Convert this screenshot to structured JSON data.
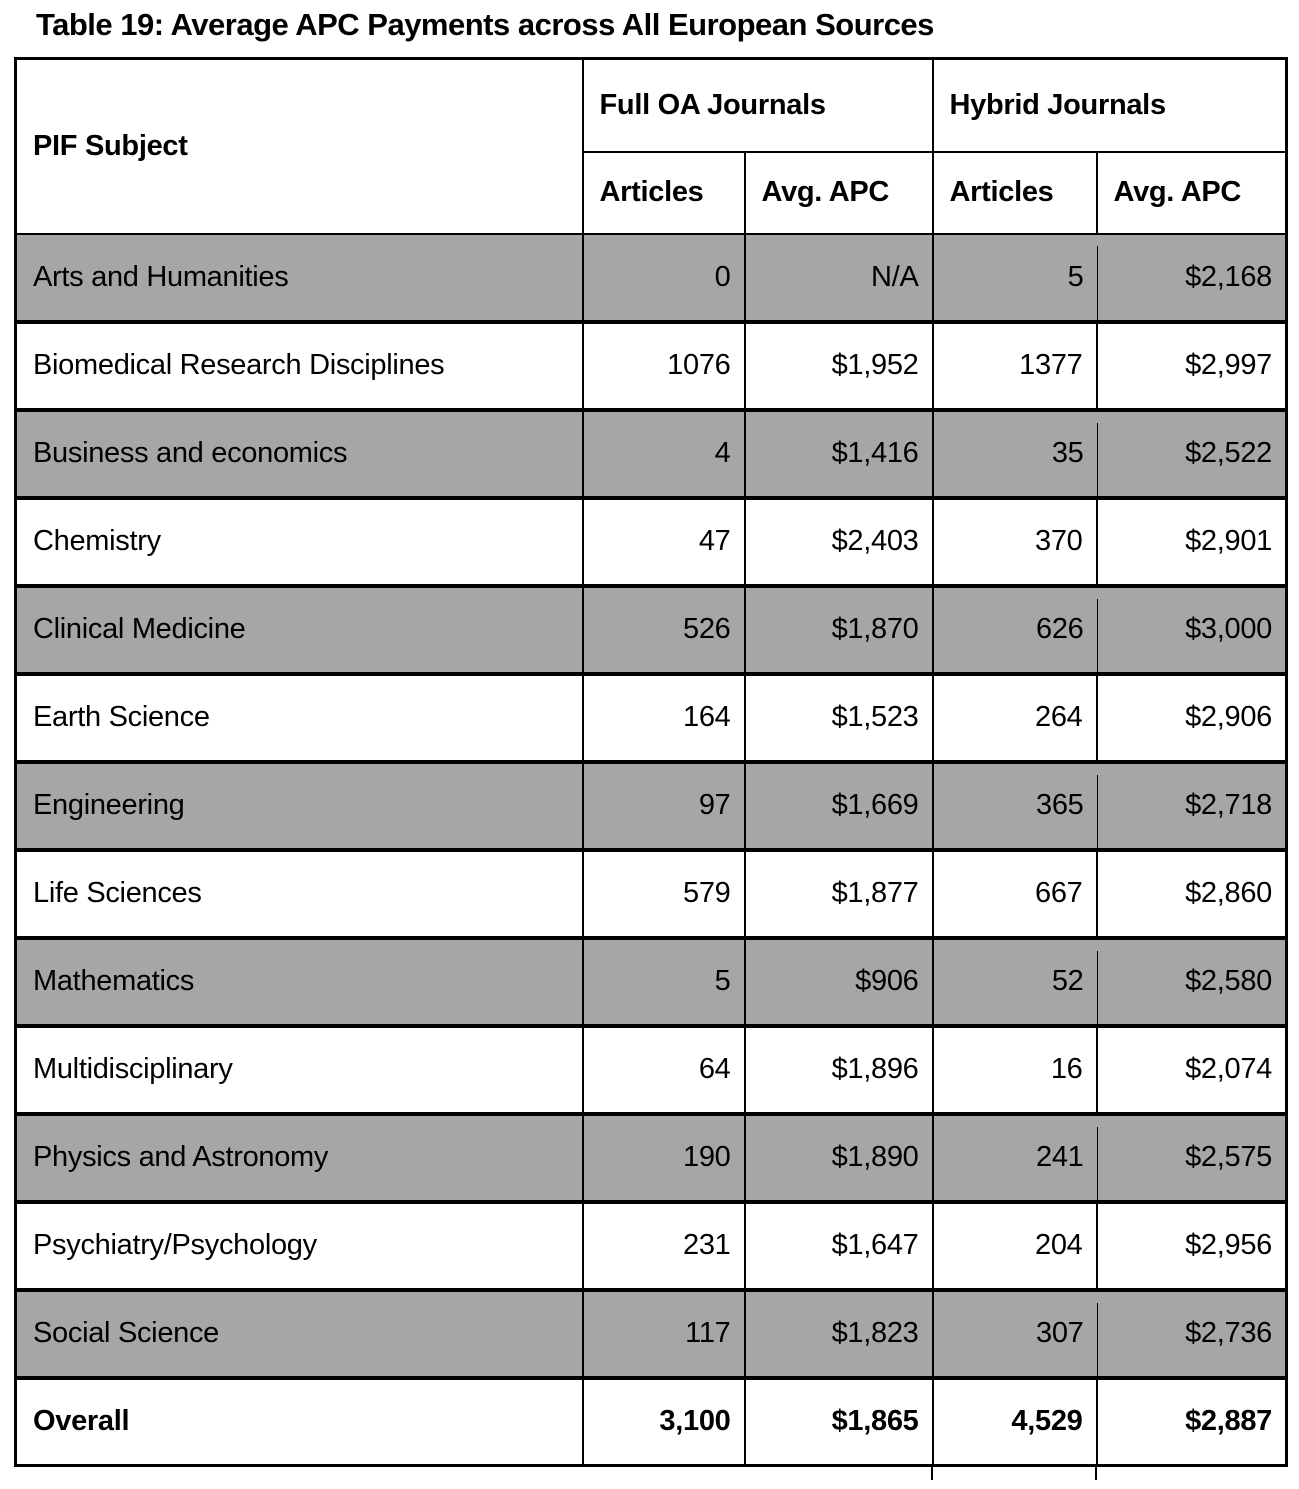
{
  "title": "Table 19: Average APC Payments across All European Sources",
  "colors": {
    "shaded_row": "#a6a6a6",
    "row_bg": "#ffffff",
    "border": "#000000",
    "text": "#000000",
    "page_bg": "#ffffff"
  },
  "table": {
    "subject_header": "PIF Subject",
    "group_headers": [
      "Full OA Journals",
      "Hybrid Journals"
    ],
    "sub_headers": [
      "Articles",
      "Avg. APC",
      "Articles",
      "Avg. APC"
    ],
    "rows": [
      {
        "subject": "Arts and Humanities",
        "oa_articles": "0",
        "oa_avg_apc": "N/A",
        "hybrid_articles": "5",
        "hybrid_avg_apc": "$2,168",
        "shaded": true,
        "bold": false
      },
      {
        "subject": "Biomedical Research Disciplines",
        "oa_articles": "1076",
        "oa_avg_apc": "$1,952",
        "hybrid_articles": "1377",
        "hybrid_avg_apc": "$2,997",
        "shaded": false,
        "bold": false
      },
      {
        "subject": "Business and economics",
        "oa_articles": "4",
        "oa_avg_apc": "$1,416",
        "hybrid_articles": "35",
        "hybrid_avg_apc": "$2,522",
        "shaded": true,
        "bold": false
      },
      {
        "subject": "Chemistry",
        "oa_articles": "47",
        "oa_avg_apc": "$2,403",
        "hybrid_articles": "370",
        "hybrid_avg_apc": "$2,901",
        "shaded": false,
        "bold": false
      },
      {
        "subject": "Clinical Medicine",
        "oa_articles": "526",
        "oa_avg_apc": "$1,870",
        "hybrid_articles": "626",
        "hybrid_avg_apc": "$3,000",
        "shaded": true,
        "bold": false
      },
      {
        "subject": "Earth Science",
        "oa_articles": "164",
        "oa_avg_apc": "$1,523",
        "hybrid_articles": "264",
        "hybrid_avg_apc": "$2,906",
        "shaded": false,
        "bold": false
      },
      {
        "subject": "Engineering",
        "oa_articles": "97",
        "oa_avg_apc": "$1,669",
        "hybrid_articles": "365",
        "hybrid_avg_apc": "$2,718",
        "shaded": true,
        "bold": false
      },
      {
        "subject": "Life Sciences",
        "oa_articles": "579",
        "oa_avg_apc": "$1,877",
        "hybrid_articles": "667",
        "hybrid_avg_apc": "$2,860",
        "shaded": false,
        "bold": false
      },
      {
        "subject": "Mathematics",
        "oa_articles": "5",
        "oa_avg_apc": "$906",
        "hybrid_articles": "52",
        "hybrid_avg_apc": "$2,580",
        "shaded": true,
        "bold": false
      },
      {
        "subject": "Multidisciplinary",
        "oa_articles": "64",
        "oa_avg_apc": "$1,896",
        "hybrid_articles": "16",
        "hybrid_avg_apc": "$2,074",
        "shaded": false,
        "bold": false
      },
      {
        "subject": "Physics and Astronomy",
        "oa_articles": "190",
        "oa_avg_apc": "$1,890",
        "hybrid_articles": "241",
        "hybrid_avg_apc": "$2,575",
        "shaded": true,
        "bold": false
      },
      {
        "subject": "Psychiatry/Psychology",
        "oa_articles": "231",
        "oa_avg_apc": "$1,647",
        "hybrid_articles": "204",
        "hybrid_avg_apc": "$2,956",
        "shaded": false,
        "bold": false
      },
      {
        "subject": "Social Science",
        "oa_articles": "117",
        "oa_avg_apc": "$1,823",
        "hybrid_articles": "307",
        "hybrid_avg_apc": "$2,736",
        "shaded": true,
        "bold": false
      },
      {
        "subject": "Overall",
        "oa_articles": "3,100",
        "oa_avg_apc": "$1,865",
        "hybrid_articles": "4,529",
        "hybrid_avg_apc": "$2,887",
        "shaded": false,
        "bold": true
      }
    ]
  }
}
